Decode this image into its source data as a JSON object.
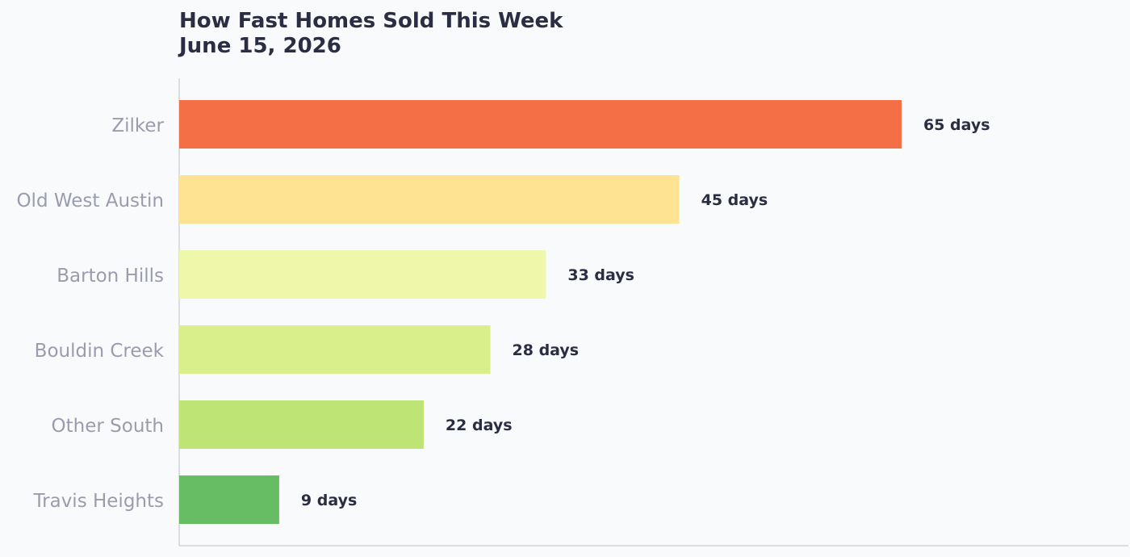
{
  "chart_data": {
    "type": "bar",
    "orientation": "horizontal",
    "title": "How Fast Homes Sold This Week",
    "subtitle": "June 15, 2026",
    "xlabel": "",
    "ylabel": "",
    "unit": "days",
    "xlim": [
      0,
      75
    ],
    "grid": false,
    "legend": "none",
    "categories": [
      "Zilker",
      "Old West Austin",
      "Barton Hills",
      "Bouldin Creek",
      "Other South",
      "Travis Heights"
    ],
    "values": [
      65,
      45,
      33,
      28,
      22,
      9
    ],
    "data_labels": [
      "65 days",
      "45 days",
      "33 days",
      "28 days",
      "22 days",
      "9 days"
    ],
    "colors": [
      "#f46f45",
      "#fee393",
      "#eff7ab",
      "#d9ef8b",
      "#bfe476",
      "#66bd63"
    ]
  },
  "colors": {
    "background": "#f9fafc",
    "title_text": "#2b2d42",
    "category_text": "#9a9cae",
    "value_text": "#2b2d42",
    "axis_line": "#dcdde3"
  }
}
